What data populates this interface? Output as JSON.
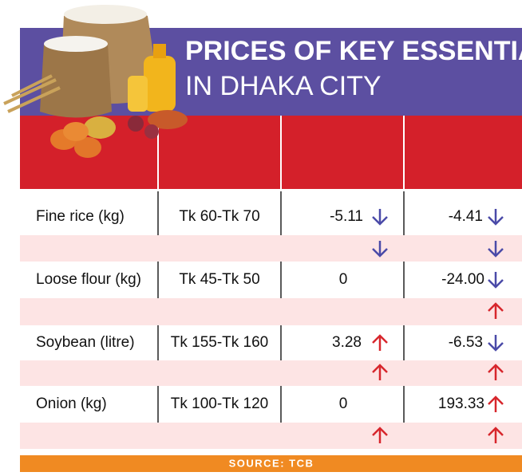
{
  "header": {
    "title_line1": "PRICES OF KEY ESSENTIALS",
    "title_line2": "IN DHAKA CITY"
  },
  "table": {
    "rows": [
      [
        "Fine rice (kg)",
        "Tk 60-Tk 70",
        "-5.11",
        "-4.41"
      ],
      [
        "Loose flour (kg)",
        "Tk 45-Tk 50",
        "0",
        "-24.00"
      ],
      [
        "Soybean (litre)",
        "Tk 155-Tk 160",
        "3.28",
        "-6.53"
      ],
      [
        "Onion (kg)",
        "Tk 100-Tk 120",
        "0",
        "193.33"
      ]
    ]
  },
  "footer": {
    "source": "SOURCE: TCB"
  }
}
